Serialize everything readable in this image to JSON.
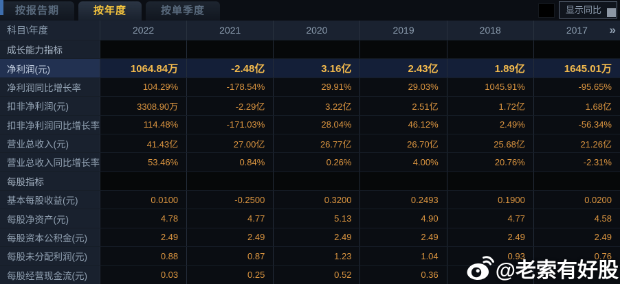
{
  "tab_bar": {
    "tabs": [
      {
        "label": "按报告期",
        "active": false
      },
      {
        "label": "按年度",
        "active": true
      },
      {
        "label": "按单季度",
        "active": false
      }
    ],
    "show_yoy_label": "显示同比"
  },
  "table": {
    "corner_label": "科目\\年度",
    "years": [
      "2022",
      "2021",
      "2020",
      "2019",
      "2018",
      "2017"
    ],
    "more_icon": "»",
    "rows": [
      {
        "type": "section",
        "label": "成长能力指标",
        "values": [
          "",
          "",
          "",
          "",
          "",
          ""
        ]
      },
      {
        "type": "highlight",
        "label": "净利润(元)",
        "values": [
          "1064.84万",
          "-2.48亿",
          "3.16亿",
          "2.43亿",
          "1.89亿",
          "1645.01万"
        ]
      },
      {
        "type": "data",
        "label": "净利润同比增长率",
        "values": [
          "104.29%",
          "-178.54%",
          "29.91%",
          "29.03%",
          "1045.91%",
          "-95.65%"
        ]
      },
      {
        "type": "data",
        "label": "扣非净利润(元)",
        "values": [
          "3308.90万",
          "-2.29亿",
          "3.22亿",
          "2.51亿",
          "1.72亿",
          "1.68亿"
        ]
      },
      {
        "type": "data",
        "label": "扣非净利润同比增长率",
        "values": [
          "114.48%",
          "-171.03%",
          "28.04%",
          "46.12%",
          "2.49%",
          "-56.34%"
        ]
      },
      {
        "type": "data",
        "label": "营业总收入(元)",
        "values": [
          "41.43亿",
          "27.00亿",
          "26.77亿",
          "26.70亿",
          "25.68亿",
          "21.26亿"
        ]
      },
      {
        "type": "data",
        "label": "营业总收入同比增长率",
        "values": [
          "53.46%",
          "0.84%",
          "0.26%",
          "4.00%",
          "20.76%",
          "-2.31%"
        ]
      },
      {
        "type": "section",
        "label": "每股指标",
        "values": [
          "",
          "",
          "",
          "",
          "",
          ""
        ]
      },
      {
        "type": "data",
        "label": "基本每股收益(元)",
        "values": [
          "0.0100",
          "-0.2500",
          "0.3200",
          "0.2493",
          "0.1900",
          "0.0200"
        ]
      },
      {
        "type": "data",
        "label": "每股净资产(元)",
        "values": [
          "4.78",
          "4.77",
          "5.13",
          "4.90",
          "4.77",
          "4.58"
        ]
      },
      {
        "type": "data",
        "label": "每股资本公积金(元)",
        "values": [
          "2.49",
          "2.49",
          "2.49",
          "2.49",
          "2.49",
          "2.49"
        ]
      },
      {
        "type": "data",
        "label": "每股未分配利润(元)",
        "values": [
          "0.88",
          "0.87",
          "1.23",
          "1.04",
          "0.93",
          "0.76"
        ]
      },
      {
        "type": "data",
        "label": "每股经营现金流(元)",
        "values": [
          "0.03",
          "0.25",
          "0.52",
          "0.36",
          "",
          ""
        ]
      }
    ]
  },
  "watermark": {
    "text": "@老索有好股"
  },
  "colors": {
    "accent_gold": "#f7c63e",
    "value_orange": "#dd9640",
    "highlight_value_gold": "#f3ba4d",
    "highlight_row_bg": "#141f38",
    "header_bg": "#1a2230",
    "label_bg": "#19212e"
  }
}
